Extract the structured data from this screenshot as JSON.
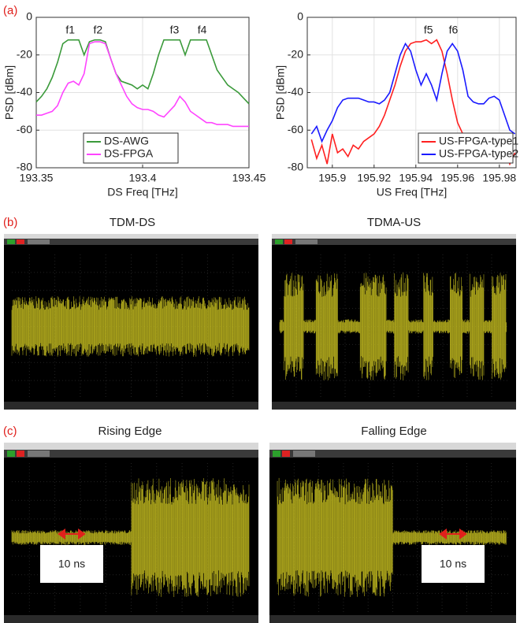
{
  "chart_data": [
    {
      "type": "line",
      "xlabel": "DS Freq [THz]",
      "ylabel": "PSD [dBm]",
      "x": [
        193.35,
        193.3525,
        193.355,
        193.3575,
        193.36,
        193.3625,
        193.365,
        193.3675,
        193.37,
        193.3725,
        193.375,
        193.3775,
        193.38,
        193.3825,
        193.385,
        193.3875,
        193.39,
        193.3925,
        193.395,
        193.3975,
        193.4,
        193.4025,
        193.405,
        193.4075,
        193.41,
        193.4125,
        193.415,
        193.4175,
        193.42,
        193.4225,
        193.425,
        193.4275,
        193.43,
        193.4325,
        193.435,
        193.4375,
        193.44,
        193.4425,
        193.445,
        193.4475,
        193.45
      ],
      "series": [
        {
          "name": "DS-AWG",
          "color": "#3a9a3a",
          "values": [
            -45,
            -42,
            -38,
            -32,
            -24,
            -14,
            -12,
            -12,
            -12,
            -20,
            -13,
            -12,
            -12,
            -13,
            -22,
            -30,
            -34,
            -35,
            -36,
            -38,
            -36,
            -38,
            -30,
            -20,
            -12,
            -12,
            -12,
            -12,
            -20,
            -12,
            -12,
            -12,
            -12,
            -20,
            -28,
            -32,
            -36,
            -38,
            -40,
            -43,
            -46
          ]
        },
        {
          "name": "DS-FPGA",
          "color": "#ff44ff",
          "values": [
            -52,
            -52,
            -51,
            -50,
            -47,
            -40,
            -35,
            -34,
            -36,
            -30,
            -14,
            -13,
            -13,
            -14,
            -22,
            -30,
            -36,
            -42,
            -46,
            -48,
            -49,
            -49,
            -50,
            -52,
            -53,
            -50,
            -47,
            -42,
            -45,
            -50,
            -52,
            -54,
            -56,
            -56,
            -57,
            -57,
            -57,
            -58,
            -58,
            -58,
            -58
          ]
        }
      ],
      "annotations": [
        {
          "text": "f1",
          "x": 193.366,
          "y": -7
        },
        {
          "text": "f2",
          "x": 193.379,
          "y": -7
        },
        {
          "text": "f3",
          "x": 193.415,
          "y": -7
        },
        {
          "text": "f4",
          "x": 193.428,
          "y": -7
        }
      ],
      "xlim": [
        193.35,
        193.45
      ],
      "xticks": [
        193.35,
        193.4,
        193.45
      ],
      "ylim": [
        -80,
        0
      ],
      "yticks": [
        -80,
        -60,
        -40,
        -20,
        0
      ],
      "grid": true,
      "legend": "lower left"
    },
    {
      "type": "line",
      "xlabel": "US Freq [THz]",
      "ylabel": "PSD [dBm]",
      "x": [
        195.89,
        195.8925,
        195.895,
        195.8975,
        195.9,
        195.9025,
        195.905,
        195.9075,
        195.91,
        195.9125,
        195.915,
        195.9175,
        195.92,
        195.9225,
        195.925,
        195.9275,
        195.93,
        195.9325,
        195.935,
        195.9375,
        195.94,
        195.9425,
        195.945,
        195.9475,
        195.95,
        195.9525,
        195.955,
        195.9575,
        195.96,
        195.9625,
        195.965,
        195.9675,
        195.97,
        195.9725,
        195.975,
        195.9775,
        195.98,
        195.9825,
        195.985,
        195.9875
      ],
      "series": [
        {
          "name": "US-FPGA-type1",
          "color": "#ff2020",
          "values": [
            -65,
            -75,
            -68,
            -78,
            -62,
            -72,
            -70,
            -74,
            -68,
            -70,
            -66,
            -64,
            -62,
            -58,
            -52,
            -44,
            -36,
            -26,
            -18,
            -14,
            -13,
            -13,
            -12,
            -14,
            -12,
            -18,
            -30,
            -44,
            -56,
            -62,
            -68,
            -66,
            -72,
            -70,
            -74,
            -68,
            -76,
            -70,
            -78,
            -72
          ]
        },
        {
          "name": "US-FPGA-type2",
          "color": "#1a1aff",
          "values": [
            -62,
            -58,
            -66,
            -60,
            -55,
            -48,
            -44,
            -43,
            -43,
            -43,
            -44,
            -45,
            -45,
            -46,
            -44,
            -40,
            -30,
            -20,
            -14,
            -18,
            -28,
            -36,
            -30,
            -36,
            -44,
            -30,
            -18,
            -14,
            -18,
            -28,
            -42,
            -45,
            -46,
            -46,
            -43,
            -42,
            -44,
            -52,
            -60,
            -62
          ]
        }
      ],
      "annotations": [
        {
          "text": "f5",
          "x": 195.946,
          "y": -7
        },
        {
          "text": "f6",
          "x": 195.958,
          "y": -7
        }
      ],
      "xlim": [
        195.888,
        195.988
      ],
      "xticks": [
        195.9,
        195.92,
        195.94,
        195.96,
        195.98
      ],
      "ylim": [
        -80,
        0
      ],
      "yticks": [
        -80,
        -60,
        -40,
        -20,
        0
      ],
      "grid": true,
      "legend": "lower right"
    }
  ],
  "labels": {
    "a": "(a)",
    "b": "(b)",
    "c": "(c)"
  },
  "scopes": [
    {
      "title": "TDM-DS"
    },
    {
      "title": "TDMA-US"
    },
    {
      "title": "Rising Edge",
      "marker": "10 ns"
    },
    {
      "title": "Falling Edge",
      "marker": "10 ns"
    }
  ]
}
